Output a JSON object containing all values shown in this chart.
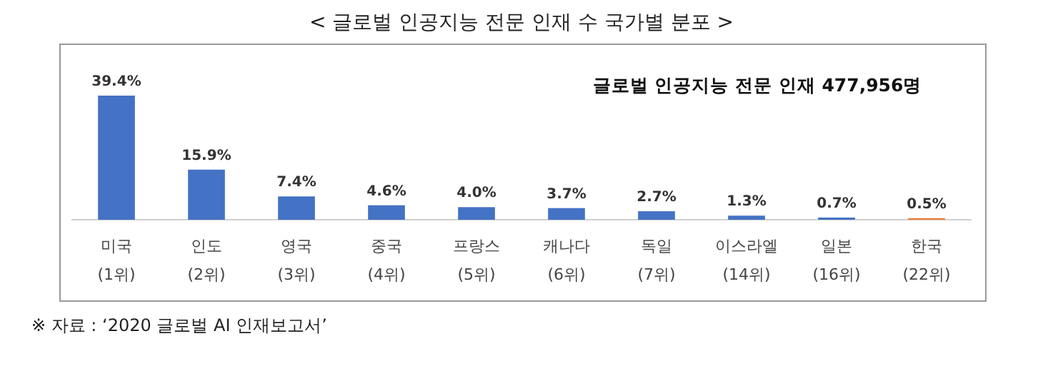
{
  "chart_data": {
    "type": "bar",
    "title": "< 글로벌 인공지능 전문 인재 수 국가별 분포 >",
    "categories": [
      "미국 (1위)",
      "인도 (2위)",
      "영국 (3위)",
      "중국 (4위)",
      "프랑스 (5위)",
      "캐나다 (6위)",
      "독일 (7위)",
      "이스라엘 (14위)",
      "일본 (16위)",
      "한국 (22위)"
    ],
    "values": [
      39.4,
      15.9,
      7.4,
      4.6,
      4.0,
      3.7,
      2.7,
      1.3,
      0.7,
      0.5
    ],
    "value_labels": [
      "39.4%",
      "15.9%",
      "7.4%",
      "4.6%",
      "4.0%",
      "3.7%",
      "2.7%",
      "1.3%",
      "0.7%",
      "0.5%"
    ],
    "colors": [
      "#4472c4",
      "#4472c4",
      "#4472c4",
      "#4472c4",
      "#4472c4",
      "#4472c4",
      "#4472c4",
      "#4472c4",
      "#4472c4",
      "#ed7d31"
    ],
    "annotations": [
      "글로벌 인공지능 전문 인재 477,956명",
      "※ 자료 : ‘2020 글로벌 AI 인재보고서’"
    ],
    "grid": false
  }
}
